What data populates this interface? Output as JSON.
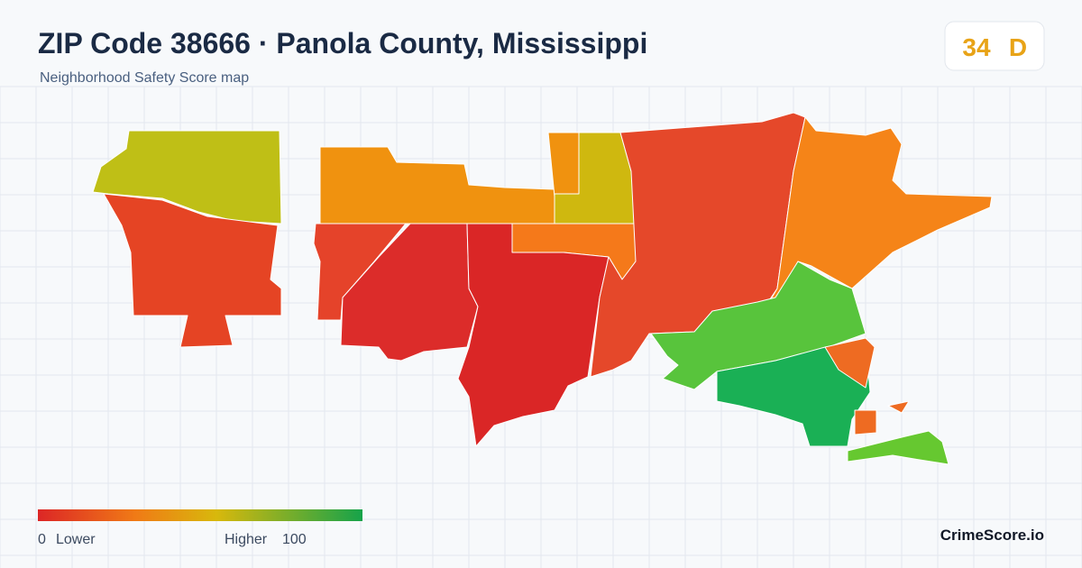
{
  "header": {
    "title": "ZIP Code 38666 · Panola County, Mississippi",
    "subtitle": "Neighborhood Safety Score map"
  },
  "badge": {
    "score": 34,
    "grade": "D"
  },
  "legend": {
    "min": 0,
    "min_label": "Lower",
    "max_label": "Higher",
    "max": 100
  },
  "brand": "CrimeScore.io"
}
